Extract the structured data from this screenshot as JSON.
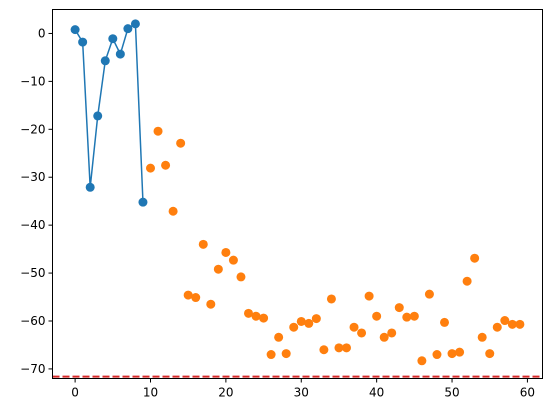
{
  "chart_data": {
    "type": "scatter",
    "title": "",
    "xlabel": "",
    "ylabel": "",
    "xlim": [
      -3,
      62
    ],
    "ylim": [
      -72,
      5
    ],
    "x_ticks": [
      0,
      10,
      20,
      30,
      40,
      50,
      60
    ],
    "y_ticks": [
      0,
      -10,
      -20,
      -30,
      -40,
      -50,
      -60,
      -70
    ],
    "x_tick_labels": [
      "0",
      "10",
      "20",
      "30",
      "40",
      "50",
      "60"
    ],
    "y_tick_labels": [
      "0",
      "−10",
      "−20",
      "−30",
      "−40",
      "−50",
      "−60",
      "−70"
    ],
    "grid": false,
    "series": [
      {
        "style": "line-marker",
        "color": "#1f77b4",
        "x": [
          0,
          1,
          2,
          3,
          4,
          5,
          6,
          7,
          8,
          9
        ],
        "y": [
          0.8,
          -1.8,
          -32.1,
          -17.2,
          -5.7,
          -1.1,
          -4.3,
          1.0,
          2.0,
          -35.2
        ]
      },
      {
        "style": "marker",
        "color": "#ff7f0e",
        "x": [
          10,
          11,
          12,
          13,
          14,
          15,
          16,
          17,
          18,
          19,
          20,
          21,
          22,
          23,
          24,
          25,
          26,
          27,
          28,
          29,
          30,
          31,
          32,
          33,
          34,
          35,
          36,
          37,
          38,
          39,
          40,
          41,
          42,
          43,
          44,
          45,
          46,
          47,
          48,
          49,
          50,
          51,
          52,
          53,
          54,
          55,
          56,
          57,
          58,
          59
        ],
        "y": [
          -28.1,
          -20.4,
          -27.5,
          -37.1,
          -22.9,
          -54.6,
          -55.1,
          -44.0,
          -56.5,
          -49.2,
          -45.7,
          -47.3,
          -50.8,
          -58.4,
          -59.0,
          -59.4,
          -67.0,
          -63.4,
          -66.8,
          -61.3,
          -60.1,
          -60.5,
          -59.5,
          -66.0,
          -55.4,
          -65.6,
          -65.6,
          -61.3,
          -62.5,
          -54.8,
          -59.0,
          -63.4,
          -62.5,
          -57.2,
          -59.2,
          -59.0,
          -68.3,
          -54.4,
          -67.0,
          -60.3,
          -66.8,
          -66.5,
          -51.7,
          -46.9,
          -63.4,
          -66.8,
          -61.3,
          -59.9,
          -60.7,
          -60.7
        ]
      },
      {
        "style": "hline",
        "color": "#d62728",
        "y": -71.6
      }
    ]
  }
}
